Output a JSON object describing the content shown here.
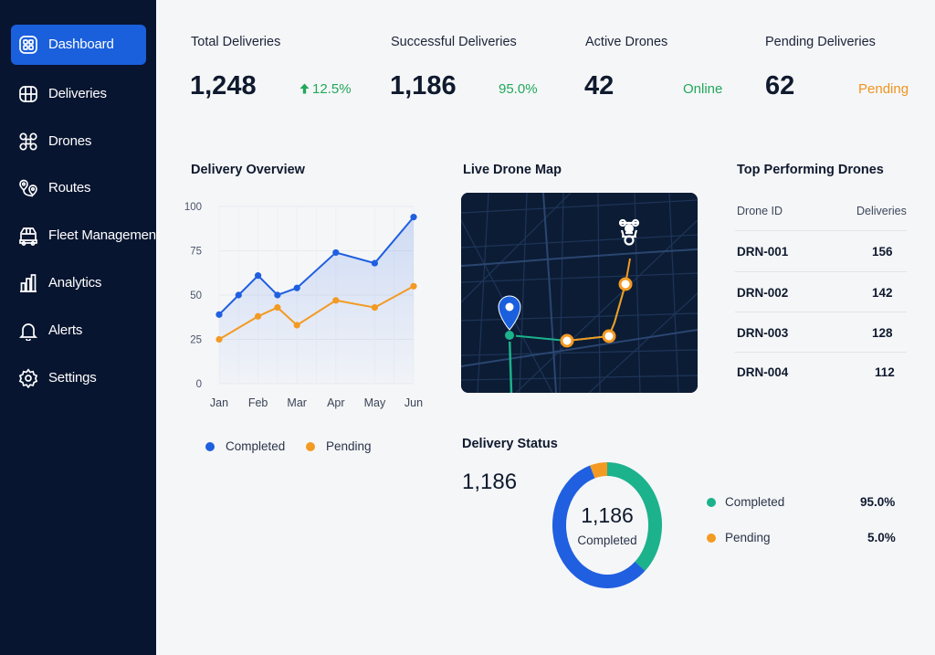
{
  "sidebar": {
    "items": [
      {
        "label": "Dashboard",
        "icon": "dashboard-icon",
        "active": true
      },
      {
        "label": "Deliveries",
        "icon": "deliveries-icon",
        "active": false
      },
      {
        "label": "Drones",
        "icon": "drones-icon",
        "active": false
      },
      {
        "label": "Routes",
        "icon": "routes-icon",
        "active": false
      },
      {
        "label": "Fleet Management",
        "icon": "fleet-icon",
        "active": false
      },
      {
        "label": "Analytics",
        "icon": "analytics-icon",
        "active": false
      },
      {
        "label": "Alerts",
        "icon": "bell-icon",
        "active": false
      },
      {
        "label": "Settings",
        "icon": "gear-icon",
        "active": false
      }
    ]
  },
  "kpis": [
    {
      "title": "Total Deliveries",
      "value": "1,248",
      "status": "12.5%",
      "status_icon": "arrow-up-icon"
    },
    {
      "title": "Successful Deliveries",
      "value": "1,186",
      "status": "95.0%"
    },
    {
      "title": "Active Drones",
      "value": "42",
      "status": "Online"
    },
    {
      "title": "Pending Deliveries",
      "value": "62",
      "status": "Pending"
    }
  ],
  "overview": {
    "title": "Delivery Overview",
    "legend": [
      "Completed",
      "Pending"
    ]
  },
  "chart_data": {
    "type": "line",
    "x": [
      "Jan",
      "Feb",
      "Mar",
      "Apr",
      "May",
      "Jun"
    ],
    "xs": [
      0,
      0.5,
      1,
      1.5,
      2,
      2.5,
      3,
      4,
      4.5,
      5
    ],
    "series": [
      {
        "name": "Completed",
        "color": "#1f5fe0",
        "points": [
          [
            0,
            39
          ],
          [
            0.5,
            50
          ],
          [
            1,
            61
          ],
          [
            1.5,
            50
          ],
          [
            2,
            54
          ],
          [
            3,
            74
          ],
          [
            4,
            68
          ],
          [
            5,
            94
          ]
        ]
      },
      {
        "name": "Pending",
        "color": "#f39a22",
        "points": [
          [
            0,
            25
          ],
          [
            1,
            38
          ],
          [
            1.5,
            43
          ],
          [
            2,
            33
          ],
          [
            3,
            47
          ],
          [
            4,
            43
          ],
          [
            5,
            55
          ]
        ]
      }
    ],
    "yticks": [
      0,
      25,
      50,
      75,
      100
    ],
    "ylim": [
      0,
      100
    ],
    "grid": true,
    "area_fill": "Completed"
  },
  "map": {
    "title": "Live Drone Map",
    "icons": [
      "location-pin-icon",
      "drone-icon"
    ]
  },
  "top_drones": {
    "title": "Top Performing Drones",
    "headers": [
      "Drone ID",
      "Deliveries"
    ],
    "rows": [
      {
        "id": "DRN-001",
        "deliveries": "156"
      },
      {
        "id": "DRN-002",
        "deliveries": "142"
      },
      {
        "id": "DRN-003",
        "deliveries": "128"
      },
      {
        "id": "DRN-004",
        "deliveries": "112"
      }
    ]
  },
  "status": {
    "title": "Delivery Status",
    "total": "1,186",
    "center_value": "1,186",
    "center_label": "Completed",
    "items": [
      {
        "label": "Completed",
        "pct": "95.0%",
        "color": "#1bb28c"
      },
      {
        "label": "Pending",
        "pct": "5.0%",
        "color": "#f39a22"
      }
    ],
    "donut": {
      "segments": [
        {
          "name": "teal",
          "fraction": 0.38,
          "color": "#1bb28c"
        },
        {
          "name": "blue",
          "fraction": 0.57,
          "color": "#1f5fe0"
        },
        {
          "name": "orange",
          "fraction": 0.05,
          "color": "#f39a22"
        }
      ]
    }
  },
  "colors": {
    "sidebar_bg": "#081530",
    "accent": "#1a5fdc",
    "green": "#22a85a",
    "orange": "#f0941e"
  }
}
